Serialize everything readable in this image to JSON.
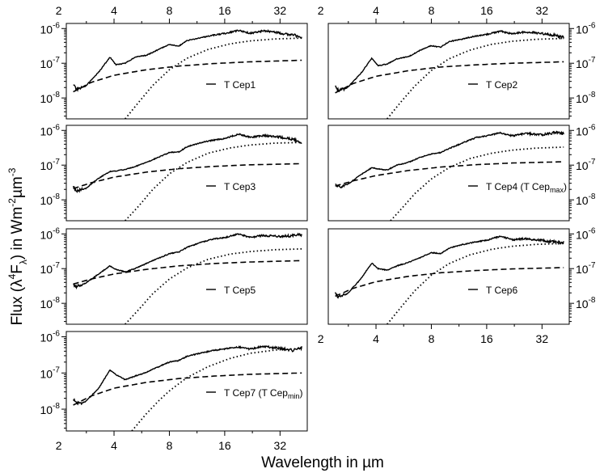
{
  "chart_data": {
    "type": "line",
    "x_axis_label": "Wavelength in µm",
    "y_axis_label_parts": [
      "Flux (λ",
      "4",
      "F",
      "λ",
      ") in Wm",
      "-2",
      "µm",
      "-3"
    ],
    "x_scale": "log2",
    "x_range": [
      2.2,
      45
    ],
    "y_scale": "log10",
    "y_range": [
      2.5e-09,
      1.4e-06
    ],
    "x_ticks": [
      2,
      4,
      8,
      16,
      32
    ],
    "x_tick_labels": [
      "2",
      "4",
      "8",
      "16",
      "32"
    ],
    "y_ticks": [
      1e-08,
      1e-07,
      1e-06
    ],
    "y_tick_labels": [
      {
        "base": "10",
        "exp": "-8"
      },
      {
        "base": "10",
        "exp": "-7"
      },
      {
        "base": "10",
        "exp": "-6"
      }
    ],
    "series_styles": {
      "observed": "solid",
      "stellar_component": "dashed",
      "dust_component": "dotted"
    },
    "panels": [
      {
        "name": "T Cep1",
        "legend": "T Cep1",
        "legend_sub": "",
        "legend_suffix": "",
        "observed": [
          [
            2.4,
            2.5e-08
          ],
          [
            2.5,
            1.7e-08
          ],
          [
            2.8,
            2.2e-08
          ],
          [
            3.3,
            5.5e-08
          ],
          [
            3.8,
            1.5e-07
          ],
          [
            4.1,
            9e-08
          ],
          [
            4.6,
            1e-07
          ],
          [
            5.2,
            1.5e-07
          ],
          [
            6,
            1.7e-07
          ],
          [
            7,
            2.5e-07
          ],
          [
            8,
            3.5e-07
          ],
          [
            9,
            3.1e-07
          ],
          [
            10,
            4.5e-07
          ],
          [
            12,
            5.5e-07
          ],
          [
            14,
            6.5e-07
          ],
          [
            16,
            7.2e-07
          ],
          [
            19,
            8.8e-07
          ],
          [
            22,
            7.3e-07
          ],
          [
            26,
            8.7e-07
          ],
          [
            32,
            7.4e-07
          ],
          [
            38,
            6.5e-07
          ],
          [
            42,
            5.6e-07
          ]
        ],
        "stellar": [
          [
            2.4,
            1.5e-08
          ],
          [
            3,
            2.8e-08
          ],
          [
            4,
            4.5e-08
          ],
          [
            6,
            6.5e-08
          ],
          [
            9,
            8.3e-08
          ],
          [
            14,
            9.8e-08
          ],
          [
            22,
            1.1e-07
          ],
          [
            42,
            1.22e-07
          ]
        ],
        "dust": [
          [
            4.6,
            2.5e-09
          ],
          [
            5.5,
            8e-09
          ],
          [
            6.5,
            2.3e-08
          ],
          [
            8,
            6.5e-08
          ],
          [
            10,
            1.4e-07
          ],
          [
            13,
            2.5e-07
          ],
          [
            17,
            3.6e-07
          ],
          [
            22,
            4.4e-07
          ],
          [
            30,
            5e-07
          ],
          [
            42,
            5.3e-07
          ]
        ]
      },
      {
        "name": "T Cep2",
        "legend": "T Cep2",
        "legend_sub": "",
        "legend_suffix": "",
        "observed": [
          [
            2.4,
            2.3e-08
          ],
          [
            2.5,
            1.6e-08
          ],
          [
            2.8,
            2e-08
          ],
          [
            3.3,
            5e-08
          ],
          [
            3.8,
            1.4e-07
          ],
          [
            4.1,
            8.5e-08
          ],
          [
            4.6,
            9.5e-08
          ],
          [
            5.2,
            1.35e-07
          ],
          [
            6,
            1.55e-07
          ],
          [
            7,
            2.4e-07
          ],
          [
            8,
            3.2e-07
          ],
          [
            9,
            2.9e-07
          ],
          [
            10,
            4.2e-07
          ],
          [
            12,
            5.1e-07
          ],
          [
            14,
            6.1e-07
          ],
          [
            16,
            6.8e-07
          ],
          [
            19,
            8.4e-07
          ],
          [
            22,
            7e-07
          ],
          [
            26,
            8e-07
          ],
          [
            32,
            7.2e-07
          ],
          [
            38,
            6.3e-07
          ],
          [
            42,
            5.5e-07
          ]
        ],
        "stellar": [
          [
            2.4,
            1.4e-08
          ],
          [
            3,
            2.6e-08
          ],
          [
            4,
            4.2e-08
          ],
          [
            6,
            6.1e-08
          ],
          [
            9,
            7.8e-08
          ],
          [
            14,
            9e-08
          ],
          [
            22,
            1e-07
          ],
          [
            42,
            1.1e-07
          ]
        ],
        "dust": [
          [
            4.6,
            2.5e-09
          ],
          [
            5.5,
            8e-09
          ],
          [
            6.5,
            2.2e-08
          ],
          [
            8,
            6.2e-08
          ],
          [
            10,
            1.35e-07
          ],
          [
            13,
            2.4e-07
          ],
          [
            17,
            3.5e-07
          ],
          [
            22,
            4.3e-07
          ],
          [
            30,
            4.9e-07
          ],
          [
            42,
            5.2e-07
          ]
        ]
      },
      {
        "name": "T Cep3",
        "legend": "T Cep3",
        "legend_sub": "",
        "legend_suffix": "",
        "observed": [
          [
            2.4,
            2.4e-08
          ],
          [
            2.5,
            1.8e-08
          ],
          [
            2.8,
            2.1e-08
          ],
          [
            3.3,
            4.2e-08
          ],
          [
            3.8,
            6.5e-08
          ],
          [
            4.1,
            6.8e-08
          ],
          [
            4.6,
            7.5e-08
          ],
          [
            5.2,
            9e-08
          ],
          [
            6,
            1.2e-07
          ],
          [
            7,
            1.7e-07
          ],
          [
            8,
            2.3e-07
          ],
          [
            9,
            2.4e-07
          ],
          [
            10,
            3.4e-07
          ],
          [
            12,
            4.5e-07
          ],
          [
            14,
            5.3e-07
          ],
          [
            16,
            5.8e-07
          ],
          [
            19,
            7.8e-07
          ],
          [
            22,
            6.3e-07
          ],
          [
            26,
            7.1e-07
          ],
          [
            32,
            6.4e-07
          ],
          [
            38,
            5.5e-07
          ],
          [
            42,
            4.3e-07
          ]
        ],
        "stellar": [
          [
            2.4,
            2.1e-08
          ],
          [
            3,
            3.1e-08
          ],
          [
            4,
            4.5e-08
          ],
          [
            6,
            6.3e-08
          ],
          [
            9,
            7.9e-08
          ],
          [
            14,
            9.2e-08
          ],
          [
            22,
            1.02e-07
          ],
          [
            42,
            1.1e-07
          ]
        ],
        "dust": [
          [
            4.6,
            2.5e-09
          ],
          [
            5.5,
            7e-09
          ],
          [
            6.5,
            2e-08
          ],
          [
            8,
            5.6e-08
          ],
          [
            10,
            1.2e-07
          ],
          [
            13,
            2.2e-07
          ],
          [
            17,
            3.1e-07
          ],
          [
            22,
            3.8e-07
          ],
          [
            30,
            4.3e-07
          ],
          [
            42,
            4.5e-07
          ]
        ]
      },
      {
        "name": "T Cep4",
        "legend": "T Cep4 (T Cep",
        "legend_sub": "max",
        "legend_suffix": ")",
        "observed": [
          [
            2.4,
            2.8e-08
          ],
          [
            2.5,
            2.3e-08
          ],
          [
            2.8,
            2.8e-08
          ],
          [
            3.3,
            5.2e-08
          ],
          [
            3.8,
            8.5e-08
          ],
          [
            4.1,
            7.8e-08
          ],
          [
            4.6,
            7.2e-08
          ],
          [
            5.2,
            1e-07
          ],
          [
            6,
            1.2e-07
          ],
          [
            7,
            1.7e-07
          ],
          [
            8,
            2.1e-07
          ],
          [
            9,
            2.3e-07
          ],
          [
            10,
            3e-07
          ],
          [
            12,
            4.5e-07
          ],
          [
            14,
            6.2e-07
          ],
          [
            16,
            7e-07
          ],
          [
            19,
            8.5e-07
          ],
          [
            22,
            7e-07
          ],
          [
            26,
            8.2e-07
          ],
          [
            32,
            7.5e-07
          ],
          [
            38,
            8.8e-07
          ],
          [
            42,
            8e-07
          ]
        ],
        "stellar": [
          [
            2.4,
            2.5e-08
          ],
          [
            3,
            3.5e-08
          ],
          [
            4,
            5e-08
          ],
          [
            6,
            7e-08
          ],
          [
            9,
            8.8e-08
          ],
          [
            14,
            1.03e-07
          ],
          [
            22,
            1.15e-07
          ],
          [
            42,
            1.25e-07
          ]
        ],
        "dust": [
          [
            4.8,
            2.5e-09
          ],
          [
            5.5,
            5.5e-09
          ],
          [
            6.5,
            1.5e-08
          ],
          [
            8,
            4e-08
          ],
          [
            10,
            8.5e-08
          ],
          [
            13,
            1.55e-07
          ],
          [
            17,
            2.2e-07
          ],
          [
            22,
            2.7e-07
          ],
          [
            30,
            3.1e-07
          ],
          [
            42,
            3.3e-07
          ]
        ]
      },
      {
        "name": "T Cep5",
        "legend": "T Cep5",
        "legend_sub": "",
        "legend_suffix": "",
        "observed": [
          [
            2.4,
            3.5e-08
          ],
          [
            2.5,
            3e-08
          ],
          [
            2.8,
            3.8e-08
          ],
          [
            3.3,
            7e-08
          ],
          [
            3.8,
            1.2e-07
          ],
          [
            4.1,
            9.5e-08
          ],
          [
            4.6,
            8e-08
          ],
          [
            5.2,
            1e-07
          ],
          [
            6,
            1.4e-07
          ],
          [
            7,
            2e-07
          ],
          [
            8,
            2.7e-07
          ],
          [
            9,
            3e-07
          ],
          [
            10,
            4.1e-07
          ],
          [
            12,
            5.8e-07
          ],
          [
            14,
            7.2e-07
          ],
          [
            16,
            7.8e-07
          ],
          [
            19,
            1e-06
          ],
          [
            22,
            8e-07
          ],
          [
            26,
            9e-07
          ],
          [
            32,
            8.4e-07
          ],
          [
            38,
            8.9e-07
          ],
          [
            42,
            9.6e-07
          ]
        ],
        "stellar": [
          [
            2.4,
            3.6e-08
          ],
          [
            3,
            5e-08
          ],
          [
            4,
            7e-08
          ],
          [
            6,
            9.5e-08
          ],
          [
            9,
            1.2e-07
          ],
          [
            14,
            1.4e-07
          ],
          [
            22,
            1.55e-07
          ],
          [
            42,
            1.7e-07
          ]
        ],
        "dust": [
          [
            4.6,
            2.5e-09
          ],
          [
            5.5,
            7e-09
          ],
          [
            6.5,
            1.9e-08
          ],
          [
            8,
            5e-08
          ],
          [
            10,
            1.05e-07
          ],
          [
            13,
            1.85e-07
          ],
          [
            17,
            2.6e-07
          ],
          [
            22,
            3.1e-07
          ],
          [
            30,
            3.5e-07
          ],
          [
            42,
            3.7e-07
          ]
        ]
      },
      {
        "name": "T Cep6",
        "legend": "T Cep6",
        "legend_sub": "",
        "legend_suffix": "",
        "observed": [
          [
            2.4,
            2e-08
          ],
          [
            2.5,
            1.5e-08
          ],
          [
            2.8,
            1.9e-08
          ],
          [
            3.3,
            5e-08
          ],
          [
            3.8,
            1.45e-07
          ],
          [
            4.1,
            1e-07
          ],
          [
            4.6,
            9e-08
          ],
          [
            5.2,
            1.2e-07
          ],
          [
            6,
            1.5e-07
          ],
          [
            7,
            2.1e-07
          ],
          [
            8,
            2.9e-07
          ],
          [
            9,
            2.7e-07
          ],
          [
            10,
            3.9e-07
          ],
          [
            12,
            5e-07
          ],
          [
            14,
            5.9e-07
          ],
          [
            16,
            6.6e-07
          ],
          [
            19,
            8.5e-07
          ],
          [
            22,
            6.8e-07
          ],
          [
            26,
            7.3e-07
          ],
          [
            32,
            6.5e-07
          ],
          [
            38,
            5.8e-07
          ],
          [
            42,
            5.6e-07
          ]
        ],
        "stellar": [
          [
            2.4,
            1.6e-08
          ],
          [
            3,
            2.7e-08
          ],
          [
            4,
            4.2e-08
          ],
          [
            6,
            6e-08
          ],
          [
            9,
            7.6e-08
          ],
          [
            14,
            8.8e-08
          ],
          [
            22,
            9.8e-08
          ],
          [
            42,
            1.07e-07
          ]
        ],
        "dust": [
          [
            4.6,
            2.5e-09
          ],
          [
            5.5,
            8e-09
          ],
          [
            6.5,
            2.3e-08
          ],
          [
            8,
            6.5e-08
          ],
          [
            10,
            1.4e-07
          ],
          [
            13,
            2.5e-07
          ],
          [
            17,
            3.6e-07
          ],
          [
            22,
            4.4e-07
          ],
          [
            30,
            5e-07
          ],
          [
            42,
            5.3e-07
          ]
        ]
      },
      {
        "name": "T Cep7",
        "legend": "T Cep7 (T Cep",
        "legend_sub": "min",
        "legend_suffix": ")",
        "observed": [
          [
            2.4,
            1.9e-08
          ],
          [
            2.5,
            1.4e-08
          ],
          [
            2.8,
            1.6e-08
          ],
          [
            3.3,
            3.8e-08
          ],
          [
            3.8,
            1.2e-07
          ],
          [
            4.1,
            9e-08
          ],
          [
            4.6,
            6.5e-08
          ],
          [
            5.2,
            8.2e-08
          ],
          [
            6,
            1.05e-07
          ],
          [
            7,
            1.5e-07
          ],
          [
            8,
            2e-07
          ],
          [
            9,
            2.2e-07
          ],
          [
            10,
            2.9e-07
          ],
          [
            12,
            3.6e-07
          ],
          [
            14,
            4.2e-07
          ],
          [
            16,
            4.6e-07
          ],
          [
            19,
            5.2e-07
          ],
          [
            22,
            4.6e-07
          ],
          [
            26,
            5.4e-07
          ],
          [
            32,
            4.8e-07
          ],
          [
            38,
            4.2e-07
          ],
          [
            42,
            5e-07
          ]
        ],
        "stellar": [
          [
            2.4,
            1.3e-08
          ],
          [
            3,
            2.3e-08
          ],
          [
            4,
            3.8e-08
          ],
          [
            6,
            5.5e-08
          ],
          [
            9,
            7e-08
          ],
          [
            14,
            8.2e-08
          ],
          [
            22,
            9.2e-08
          ],
          [
            42,
            1e-07
          ]
        ],
        "dust": [
          [
            5,
            2.5e-09
          ],
          [
            6,
            7.5e-09
          ],
          [
            7,
            1.7e-08
          ],
          [
            8,
            3.2e-08
          ],
          [
            10,
            7.5e-08
          ],
          [
            13,
            1.5e-07
          ],
          [
            17,
            2.5e-07
          ],
          [
            22,
            3.5e-07
          ],
          [
            30,
            4.3e-07
          ],
          [
            42,
            4.8e-07
          ]
        ]
      }
    ]
  }
}
